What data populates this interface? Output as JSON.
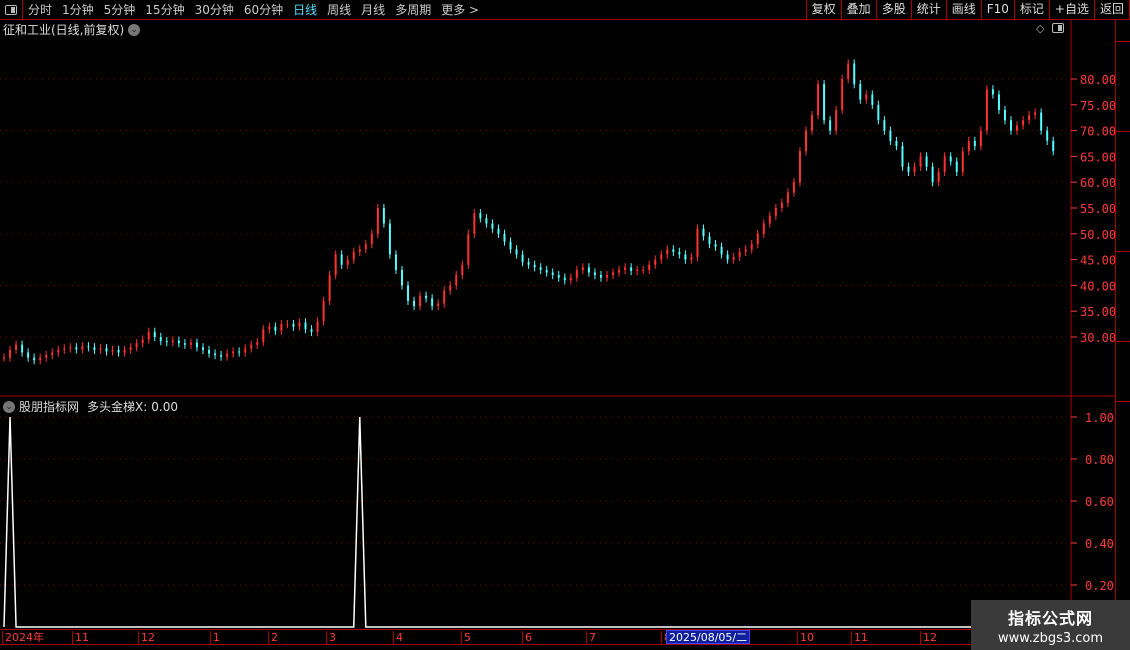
{
  "toolbar": {
    "periods": [
      "分时",
      "1分钟",
      "5分钟",
      "15分钟",
      "30分钟",
      "60分钟",
      "日线",
      "周线",
      "月线",
      "多周期",
      "更多 >"
    ],
    "active_period": "日线",
    "right_tools": [
      "复权",
      "叠加",
      "多股",
      "统计",
      "画线",
      "F10",
      "标记",
      "+自选",
      "返回"
    ]
  },
  "main_pane": {
    "title": "征和工业(日线,前复权)",
    "icons": [
      "diamond-icon",
      "layout-toggle-icon"
    ]
  },
  "indicator_pane": {
    "source": "股朋指标网",
    "name": "多头金梯X:",
    "value": "0.00"
  },
  "date_axis": {
    "labels": [
      "2024年",
      "11",
      "12",
      "1",
      "2",
      "3",
      "4",
      "5",
      "6",
      "7",
      "8",
      "10",
      "11",
      "12"
    ],
    "cursor_date": "2025/08/05/二"
  },
  "watermark": {
    "name": "指标公式网",
    "url": "www.zbgs3.com"
  },
  "colors": {
    "up": "#ff3232",
    "down": "#54ffff",
    "axis": "#ff3b3b",
    "border": "#aa0000",
    "active": "#4fe0ff"
  },
  "chart_data": [
    {
      "type": "candlestick",
      "ylim": [
        22,
        86
      ],
      "y_ticks": [
        "80.00",
        "75.00",
        "70.00",
        "65.00",
        "60.00",
        "55.00",
        "50.00",
        "45.00",
        "40.00",
        "35.00",
        "30.00"
      ],
      "closes": [
        26,
        27.5,
        28.5,
        27,
        26,
        25.5,
        26,
        26.5,
        27,
        27.5,
        27.8,
        28,
        27.6,
        28.2,
        28,
        27.5,
        27.8,
        27.2,
        27.5,
        27,
        27.5,
        28,
        28.8,
        29.5,
        31,
        30,
        29.2,
        29,
        29.3,
        28.8,
        28.5,
        28.9,
        28,
        27.5,
        26.8,
        26.5,
        26.2,
        26.8,
        27.2,
        27,
        27.8,
        28.5,
        29,
        31.5,
        32,
        31.2,
        32.5,
        32.5,
        32,
        32.8,
        31.5,
        31,
        33,
        37,
        42,
        46,
        44,
        45,
        46.5,
        47,
        48,
        50,
        55,
        52,
        46,
        43,
        40,
        37,
        36,
        38,
        37.5,
        36,
        36.5,
        39,
        40,
        42,
        44,
        50,
        54,
        53,
        52,
        51,
        50,
        48.5,
        47,
        46,
        44.5,
        44,
        43.5,
        43,
        42.5,
        42,
        41.5,
        41,
        41.5,
        43,
        43.5,
        42.5,
        42,
        41.5,
        42,
        42.5,
        43,
        43.5,
        42.8,
        43,
        43,
        44,
        45,
        46,
        47,
        46.5,
        46,
        45,
        45.5,
        51,
        49.5,
        48,
        47.5,
        46,
        45,
        45.5,
        46.5,
        47,
        48,
        50,
        52,
        53.5,
        55,
        56,
        58,
        60,
        66,
        70,
        73,
        79,
        72,
        70,
        74,
        80,
        83,
        79,
        76,
        77,
        75,
        72,
        70,
        68,
        67,
        63,
        62,
        63,
        65,
        63,
        60,
        62,
        65,
        64,
        62,
        66,
        68,
        67,
        70,
        78,
        77,
        74,
        72,
        70,
        71,
        72,
        73,
        73.5,
        70,
        68,
        66
      ]
    },
    {
      "type": "line",
      "name": "多头金梯X",
      "ylim": [
        0,
        1.1
      ],
      "y_ticks": [
        "1.00",
        "0.80",
        "0.60",
        "0.40",
        "0.20"
      ],
      "signal_indices": [
        1,
        59
      ]
    }
  ]
}
